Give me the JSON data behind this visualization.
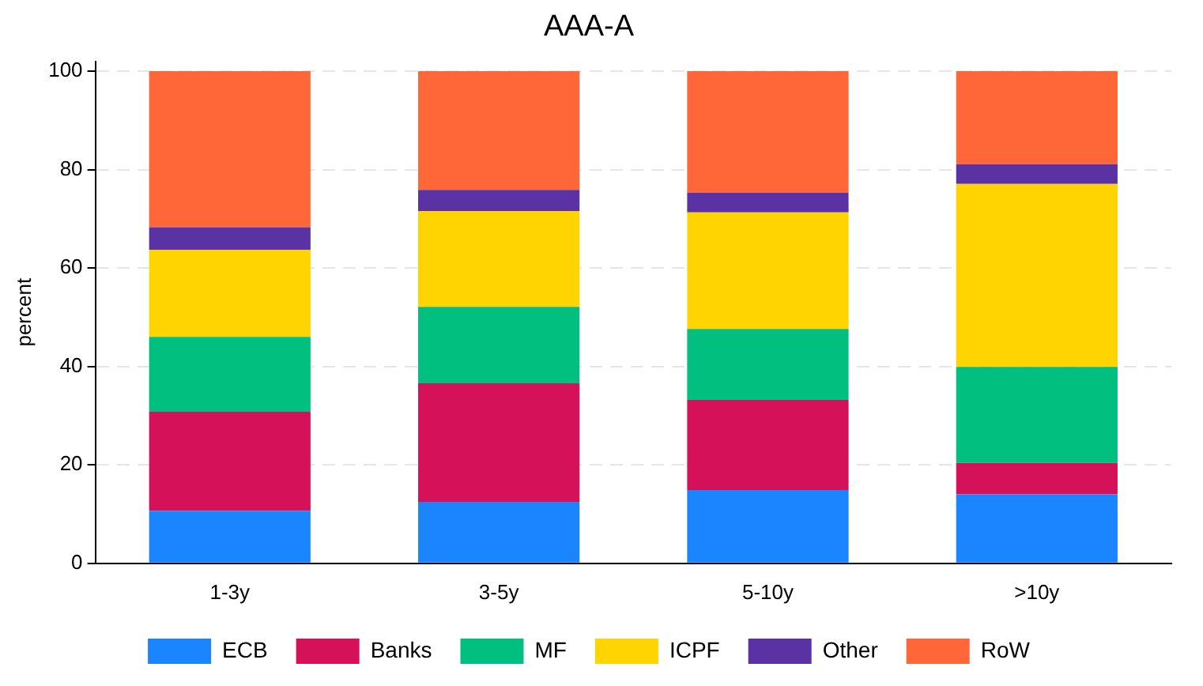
{
  "chart_data": {
    "type": "bar",
    "title": "AAA-A",
    "ylabel": "percent",
    "stacked": true,
    "categories": [
      "1-3y",
      "3-5y",
      "5-10y",
      ">10y"
    ],
    "series": [
      {
        "name": "ECB",
        "color": "#1a85ff",
        "values": [
          10.7,
          12.5,
          14.9,
          14.0
        ]
      },
      {
        "name": "Banks",
        "color": "#d41159",
        "values": [
          20.1,
          24.1,
          18.3,
          6.4
        ]
      },
      {
        "name": "MF",
        "color": "#00bf7f",
        "values": [
          15.2,
          15.5,
          14.4,
          19.5
        ]
      },
      {
        "name": "ICPF",
        "color": "#ffd400",
        "values": [
          17.7,
          19.5,
          23.7,
          37.2
        ]
      },
      {
        "name": "Other",
        "color": "#5a32a3",
        "values": [
          4.6,
          4.3,
          4.0,
          4.0
        ]
      },
      {
        "name": "RoW",
        "color": "#ff6739",
        "values": [
          31.7,
          24.1,
          24.7,
          18.9
        ]
      }
    ],
    "ylim": [
      0,
      102
    ],
    "yticks": [
      0,
      20,
      40,
      60,
      80,
      100
    ],
    "grid": "y",
    "legend": "bottom"
  }
}
